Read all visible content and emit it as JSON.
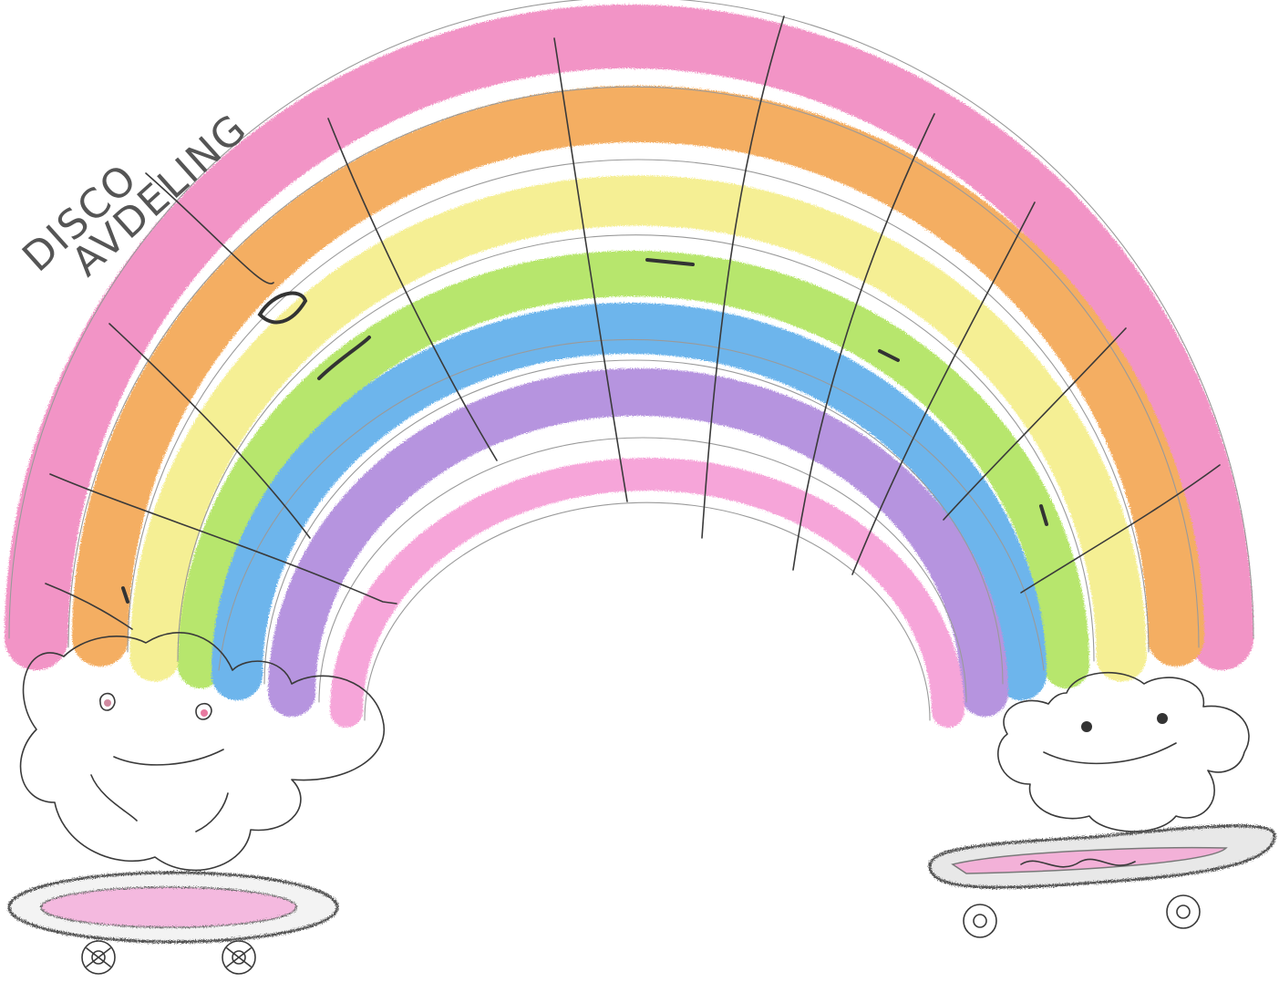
{
  "caption": {
    "line1": "DISCO",
    "line2": "AVDELING"
  },
  "colors": {
    "pink": "#f07ab8",
    "orange": "#f29a3a",
    "yellow": "#f3ec7a",
    "green": "#a6e14a",
    "blue": "#4aa3e8",
    "purple": "#a57ad8",
    "inner_pink": "#f58fd0",
    "pencil": "#3a3a3a",
    "skateboard_gray": "#9a9a9a",
    "cheek_pink": "#e87aa0"
  },
  "icons": {
    "left_character": "cloud-character-icon",
    "right_character": "cloud-character-icon",
    "left_board": "skateboard-icon",
    "right_board": "skateboard-icon",
    "rainbow": "rainbow-icon"
  }
}
